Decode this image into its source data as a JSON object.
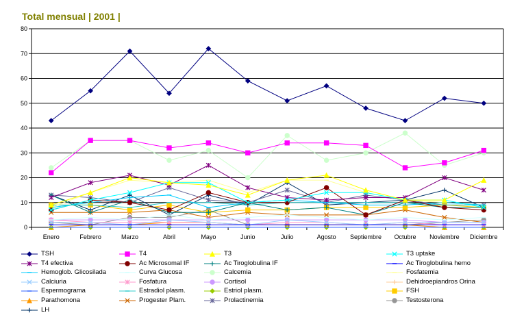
{
  "chart_data": {
    "type": "line",
    "title": "Total mensual | 2001 |",
    "xlabel": "",
    "ylabel": "",
    "ylim": [
      0,
      80
    ],
    "yticks": [
      0,
      10,
      20,
      30,
      40,
      50,
      60,
      70,
      80
    ],
    "grid": "horizontal",
    "legend_position": "bottom",
    "categories": [
      "Enero",
      "Febrero",
      "Marzo",
      "Abril",
      "Mayo",
      "Junio",
      "Julio",
      "Agosto",
      "Septiembre",
      "Octubre",
      "Noviembre",
      "Diciembre"
    ],
    "series": [
      {
        "name": "TSH",
        "color": "#000080",
        "marker": "diamond",
        "values": [
          43,
          55,
          71,
          54,
          72,
          59,
          51,
          57,
          48,
          43,
          52,
          50
        ]
      },
      {
        "name": "T4",
        "color": "#ff00ff",
        "marker": "square",
        "values": [
          22,
          35,
          35,
          32,
          34,
          30,
          34,
          34,
          33,
          24,
          26,
          31
        ]
      },
      {
        "name": "T3",
        "color": "#ffff00",
        "marker": "triangle",
        "values": [
          9,
          14,
          20,
          18,
          17,
          13,
          19,
          21,
          15,
          11,
          11,
          19
        ]
      },
      {
        "name": "T3 uptake",
        "color": "#00ffff",
        "marker": "x",
        "values": [
          7,
          11,
          14,
          18,
          18,
          10,
          11,
          14,
          14,
          11,
          11,
          8
        ]
      },
      {
        "name": "T4 efectiva",
        "color": "#800080",
        "marker": "star",
        "values": [
          12,
          18,
          21,
          17,
          25,
          16,
          12,
          11,
          12,
          12,
          20,
          15
        ]
      },
      {
        "name": "Ac Microsomal IF",
        "color": "#800000",
        "marker": "circle",
        "values": [
          7,
          11,
          10,
          7,
          14,
          10,
          10,
          16,
          5,
          11,
          8,
          7
        ]
      },
      {
        "name": "Ac Tiroglobulina IF",
        "color": "#008080",
        "marker": "plus",
        "values": [
          13,
          6,
          11,
          6,
          6,
          10,
          7,
          8,
          5,
          10,
          8,
          8
        ]
      },
      {
        "name": "Ac Tiroglobulina hemo",
        "color": "#0000ff",
        "marker": "dash",
        "values": [
          1,
          1,
          1,
          1,
          1,
          1,
          1,
          1,
          1,
          1,
          1,
          1
        ]
      },
      {
        "name": "Hemoglob. Glicosilada",
        "color": "#00ccff",
        "marker": "dash",
        "values": [
          8,
          10,
          12,
          13,
          8,
          10,
          11,
          10,
          9,
          9,
          10,
          9
        ]
      },
      {
        "name": "Curva Glucosa",
        "color": "#ccffff",
        "marker": "dash",
        "values": [
          3,
          4,
          3,
          5,
          3,
          4,
          5,
          4,
          3,
          4,
          3,
          4
        ]
      },
      {
        "name": "Calcemia",
        "color": "#ccffcc",
        "marker": "circle",
        "values": [
          24,
          35,
          35,
          27,
          31,
          20,
          37,
          27,
          30,
          38,
          25,
          30
        ]
      },
      {
        "name": "Fosfatemia",
        "color": "#ffff99",
        "marker": "dash",
        "values": [
          8,
          14,
          19,
          18,
          19,
          14,
          19,
          19,
          14,
          11,
          10,
          9
        ]
      },
      {
        "name": "Calciuria",
        "color": "#99ccff",
        "marker": "x",
        "values": [
          2,
          2,
          1,
          3,
          2,
          1,
          3,
          2,
          1,
          2,
          2,
          2
        ]
      },
      {
        "name": "Fosfatura",
        "color": "#ff99cc",
        "marker": "star",
        "values": [
          3,
          2,
          2,
          2,
          2,
          1,
          2,
          2,
          1,
          2,
          1,
          1
        ]
      },
      {
        "name": "Cortisol",
        "color": "#cc99ff",
        "marker": "circle",
        "values": [
          3,
          3,
          3,
          3,
          3,
          3,
          3,
          3,
          3,
          3,
          2,
          2
        ]
      },
      {
        "name": "Dehidroepiandros Orina",
        "color": "#ffcc99",
        "marker": "plus",
        "values": [
          1,
          1,
          1,
          1,
          1,
          1,
          1,
          1,
          1,
          1,
          1,
          1
        ]
      },
      {
        "name": "Espermograma",
        "color": "#3366ff",
        "marker": "dash",
        "values": [
          0,
          0,
          0,
          0,
          0,
          0,
          0,
          0,
          0,
          0,
          0,
          0
        ]
      },
      {
        "name": "Estradiol plasm.",
        "color": "#33cccc",
        "marker": "dash",
        "values": [
          9,
          9,
          8,
          10,
          10,
          9,
          10,
          10,
          10,
          10,
          9,
          9
        ]
      },
      {
        "name": "Estriol plasm.",
        "color": "#99cc00",
        "marker": "diamond",
        "values": [
          0,
          0,
          0,
          0,
          0,
          0,
          0,
          0,
          0,
          0,
          0,
          0
        ]
      },
      {
        "name": "FSH",
        "color": "#ffcc00",
        "marker": "square",
        "values": [
          9,
          9,
          7,
          9,
          6,
          7,
          7,
          8,
          8,
          8,
          9,
          8
        ]
      },
      {
        "name": "Parathomona",
        "color": "#ff9900",
        "marker": "triangle",
        "values": [
          0,
          1,
          1,
          2,
          2,
          1,
          1,
          1,
          1,
          1,
          0,
          0
        ]
      },
      {
        "name": "Progester Plam.",
        "color": "#cc6600",
        "marker": "x",
        "values": [
          6,
          6,
          6,
          7,
          4,
          6,
          5,
          5,
          5,
          7,
          4,
          2
        ]
      },
      {
        "name": "Prolactinemia",
        "color": "#666699",
        "marker": "star",
        "values": [
          13,
          12,
          10,
          16,
          11,
          10,
          15,
          10,
          13,
          11,
          9,
          9
        ]
      },
      {
        "name": "Testosterona",
        "color": "#969696",
        "marker": "circle",
        "values": [
          2,
          1,
          4,
          4,
          7,
          1,
          1,
          1,
          1,
          1,
          2,
          3
        ]
      },
      {
        "name": "LH",
        "color": "#003366",
        "marker": "plus",
        "values": [
          13,
          7,
          13,
          5,
          13,
          9,
          18,
          9,
          10,
          11,
          15,
          8
        ]
      }
    ]
  }
}
